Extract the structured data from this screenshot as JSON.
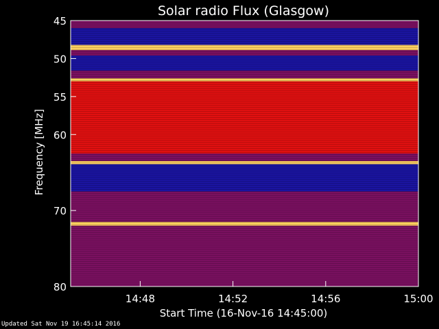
{
  "chart_data": {
    "type": "heatmap",
    "title": "Solar radio Flux (Glasgow)",
    "xlabel": "Start Time (16-Nov-16 14:45:00)",
    "ylabel": "Frequency [MHz]",
    "x_range": [
      "14:45",
      "15:00"
    ],
    "y_range": [
      45,
      80
    ],
    "y_inverted": true,
    "xticks": [
      "14:48",
      "14:52",
      "14:56",
      "15:00"
    ],
    "yticks": [
      45,
      50,
      55,
      60,
      70,
      80
    ],
    "colors": {
      "low": "#1a14a0",
      "mid": "#7a1060",
      "high": "#e01010",
      "peak": "#ffd060",
      "background": "#000000"
    },
    "bands": [
      {
        "from": 45.0,
        "to": 46.0,
        "level": "mid"
      },
      {
        "from": 46.0,
        "to": 48.2,
        "level": "low"
      },
      {
        "from": 48.2,
        "to": 48.9,
        "level": "peak"
      },
      {
        "from": 48.9,
        "to": 49.6,
        "level": "mid"
      },
      {
        "from": 49.6,
        "to": 51.6,
        "level": "low"
      },
      {
        "from": 51.6,
        "to": 52.6,
        "level": "mid"
      },
      {
        "from": 52.6,
        "to": 53.0,
        "level": "peak"
      },
      {
        "from": 53.0,
        "to": 62.5,
        "level": "high"
      },
      {
        "from": 62.5,
        "to": 63.5,
        "level": "mid"
      },
      {
        "from": 63.5,
        "to": 63.9,
        "level": "peak"
      },
      {
        "from": 63.9,
        "to": 67.5,
        "level": "low"
      },
      {
        "from": 67.5,
        "to": 71.5,
        "level": "mid"
      },
      {
        "from": 71.5,
        "to": 72.0,
        "level": "peak"
      },
      {
        "from": 72.0,
        "to": 80.0,
        "level": "mid"
      }
    ]
  },
  "footer": "Updated Sat Nov 19 16:45:14 2016"
}
